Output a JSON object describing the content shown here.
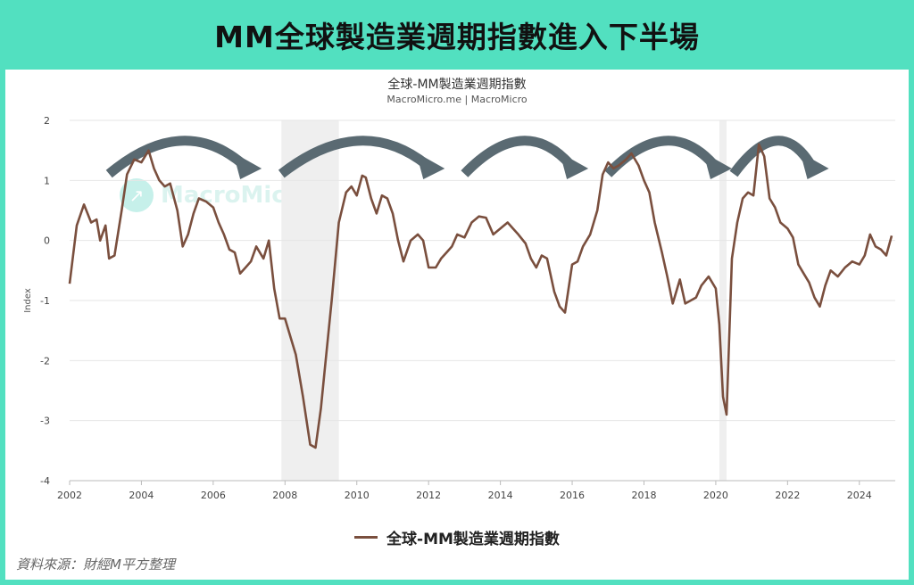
{
  "header": {
    "title": "MM全球製造業週期指數進入下半場"
  },
  "chart": {
    "title": "全球-MM製造業週期指數",
    "subtitle": "MacroMicro.me | MacroMicro",
    "watermark": "MacroMicro",
    "legend_label": "全球-MM製造業週期指數",
    "source": "資料來源：財經M平方整理",
    "line_color": "#7a4f3e",
    "arrow_color": "#5a6a72",
    "band_color": "#efefef"
  },
  "chart_data": {
    "type": "line",
    "title": "全球-MM製造業週期指數",
    "ylabel": "Index",
    "xlabel": "",
    "xlim": [
      2002,
      2025
    ],
    "ylim": [
      -4,
      2
    ],
    "y_ticks": [
      "2",
      "1",
      "0",
      "-1",
      "-2",
      "-3",
      "-4"
    ],
    "x_ticks": [
      "2002",
      "2004",
      "2006",
      "2008",
      "2010",
      "2012",
      "2014",
      "2016",
      "2018",
      "2020",
      "2022",
      "2024"
    ],
    "grid": true,
    "legend_position": "bottom",
    "shaded_periods": [
      [
        2007.9,
        2009.5
      ],
      [
        2020.1,
        2020.3
      ]
    ],
    "series": [
      {
        "name": "全球-MM製造業週期指數",
        "x": [
          2002.0,
          2002.2,
          2002.4,
          2002.6,
          2002.75,
          2002.85,
          2003.0,
          2003.1,
          2003.25,
          2003.45,
          2003.6,
          2003.8,
          2004.0,
          2004.2,
          2004.35,
          2004.5,
          2004.65,
          2004.8,
          2005.0,
          2005.15,
          2005.3,
          2005.45,
          2005.6,
          2005.8,
          2006.0,
          2006.15,
          2006.3,
          2006.45,
          2006.6,
          2006.75,
          2006.9,
          2007.05,
          2007.2,
          2007.4,
          2007.55,
          2007.7,
          2007.85,
          2008.0,
          2008.15,
          2008.3,
          2008.5,
          2008.7,
          2008.85,
          2009.0,
          2009.1,
          2009.3,
          2009.5,
          2009.7,
          2009.85,
          2010.0,
          2010.15,
          2010.25,
          2010.4,
          2010.55,
          2010.7,
          2010.85,
          2011.0,
          2011.15,
          2011.3,
          2011.5,
          2011.7,
          2011.85,
          2012.0,
          2012.2,
          2012.35,
          2012.5,
          2012.65,
          2012.8,
          2013.0,
          2013.2,
          2013.4,
          2013.6,
          2013.8,
          2014.0,
          2014.2,
          2014.35,
          2014.5,
          2014.7,
          2014.85,
          2015.0,
          2015.15,
          2015.3,
          2015.5,
          2015.65,
          2015.8,
          2016.0,
          2016.15,
          2016.3,
          2016.5,
          2016.7,
          2016.85,
          2017.0,
          2017.15,
          2017.3,
          2017.5,
          2017.65,
          2017.85,
          2018.0,
          2018.15,
          2018.3,
          2018.5,
          2018.65,
          2018.8,
          2019.0,
          2019.15,
          2019.3,
          2019.45,
          2019.6,
          2019.8,
          2020.0,
          2020.1,
          2020.2,
          2020.3,
          2020.45,
          2020.6,
          2020.75,
          2020.9,
          2021.05,
          2021.2,
          2021.35,
          2021.5,
          2021.65,
          2021.8,
          2022.0,
          2022.15,
          2022.3,
          2022.45,
          2022.6,
          2022.75,
          2022.9,
          2023.05,
          2023.2,
          2023.4,
          2023.6,
          2023.8,
          2024.0,
          2024.15,
          2024.3,
          2024.45,
          2024.6,
          2024.75,
          2024.9
        ],
        "values": [
          -0.72,
          0.25,
          0.6,
          0.3,
          0.35,
          0.0,
          0.25,
          -0.3,
          -0.25,
          0.5,
          1.1,
          1.35,
          1.3,
          1.5,
          1.2,
          1.0,
          0.9,
          0.95,
          0.5,
          -0.1,
          0.1,
          0.45,
          0.7,
          0.65,
          0.55,
          0.3,
          0.1,
          -0.15,
          -0.2,
          -0.55,
          -0.45,
          -0.35,
          -0.1,
          -0.3,
          0.0,
          -0.8,
          -1.3,
          -1.3,
          -1.6,
          -1.9,
          -2.6,
          -3.4,
          -3.45,
          -2.8,
          -2.2,
          -1.0,
          0.3,
          0.8,
          0.9,
          0.75,
          1.08,
          1.05,
          0.7,
          0.45,
          0.75,
          0.7,
          0.45,
          0.0,
          -0.35,
          0.0,
          0.1,
          0.0,
          -0.45,
          -0.45,
          -0.3,
          -0.2,
          -0.1,
          0.1,
          0.05,
          0.3,
          0.4,
          0.38,
          0.1,
          0.2,
          0.3,
          0.2,
          0.1,
          -0.05,
          -0.3,
          -0.45,
          -0.25,
          -0.3,
          -0.85,
          -1.1,
          -1.2,
          -0.4,
          -0.35,
          -0.1,
          0.1,
          0.5,
          1.1,
          1.3,
          1.2,
          1.25,
          1.35,
          1.45,
          1.25,
          1.0,
          0.8,
          0.3,
          -0.2,
          -0.6,
          -1.05,
          -0.65,
          -1.05,
          -1.0,
          -0.95,
          -0.75,
          -0.6,
          -0.8,
          -1.4,
          -2.6,
          -2.9,
          -0.3,
          0.3,
          0.7,
          0.8,
          0.75,
          1.6,
          1.4,
          0.7,
          0.55,
          0.3,
          0.2,
          0.05,
          -0.4,
          -0.55,
          -0.7,
          -0.95,
          -1.1,
          -0.75,
          -0.5,
          -0.6,
          -0.45,
          -0.35,
          -0.4,
          -0.25,
          0.1,
          -0.1,
          -0.15,
          -0.25,
          0.08
        ]
      }
    ],
    "annotations": [
      "arrow-cycle-2003-2007",
      "arrow-cycle-2008-2012",
      "arrow-cycle-2013-2016",
      "arrow-cycle-2017-2020",
      "arrow-cycle-2020-2022"
    ]
  }
}
